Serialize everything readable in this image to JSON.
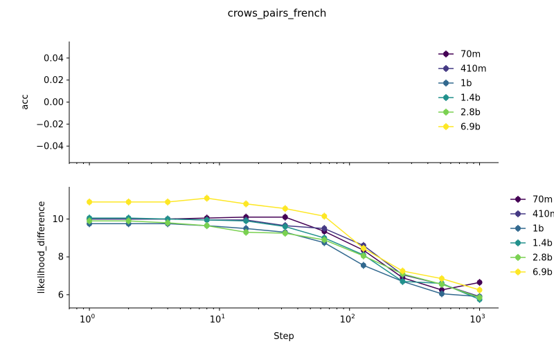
{
  "figure": {
    "title": "crows_pairs_french",
    "xlabel": "Step",
    "series_names": [
      "70m",
      "410m",
      "1b",
      "1.4b",
      "2.8b",
      "6.9b"
    ],
    "colors": [
      "#440154",
      "#443983",
      "#31688e",
      "#21918c",
      "#7ad151",
      "#fde725"
    ]
  },
  "chart_data": [
    {
      "type": "line",
      "ylabel": "acc",
      "x_scale": "log",
      "xlim": [
        0.7,
        1400
      ],
      "ylim": [
        -0.055,
        0.055
      ],
      "yticks": [
        "0.04",
        "0.02",
        "0.00",
        "−0.02",
        "−0.04"
      ],
      "ytick_values": [
        0.04,
        0.02,
        0.0,
        -0.02,
        -0.04
      ],
      "legend": "top-right",
      "series": []
    },
    {
      "type": "line",
      "ylabel": "likelihood_difference",
      "x_scale": "log",
      "xlim": [
        0.7,
        1400
      ],
      "ylim": [
        5.3,
        11.7
      ],
      "yticks": [
        "10",
        "8",
        "6"
      ],
      "ytick_values": [
        10,
        8,
        6
      ],
      "xticks": [
        {
          "base": "10",
          "exp": "0",
          "value": 1
        },
        {
          "base": "10",
          "exp": "1",
          "value": 10
        },
        {
          "base": "10",
          "exp": "2",
          "value": 100
        },
        {
          "base": "10",
          "exp": "3",
          "value": 1000
        }
      ],
      "legend": "right-outside",
      "x": [
        1,
        2,
        4,
        8,
        16,
        32,
        64,
        128,
        256,
        512,
        1000
      ],
      "series": [
        {
          "name": "70m",
          "values": [
            10.0,
            10.0,
            10.0,
            10.05,
            10.1,
            10.1,
            9.35,
            8.35,
            6.9,
            6.25,
            6.65
          ]
        },
        {
          "name": "410m",
          "values": [
            10.0,
            10.0,
            10.0,
            9.95,
            9.95,
            9.65,
            9.5,
            8.6,
            7.05,
            6.55,
            5.9
          ]
        },
        {
          "name": "1b",
          "values": [
            9.75,
            9.75,
            9.75,
            9.65,
            9.5,
            9.3,
            8.75,
            7.55,
            6.7,
            6.05,
            5.9
          ]
        },
        {
          "name": "1.4b",
          "values": [
            10.05,
            10.05,
            10.0,
            9.95,
            9.9,
            9.6,
            9.0,
            8.1,
            6.7,
            6.6,
            5.75
          ]
        },
        {
          "name": "2.8b",
          "values": [
            9.9,
            9.9,
            9.8,
            9.65,
            9.3,
            9.25,
            8.9,
            8.05,
            7.1,
            6.55,
            5.85
          ]
        },
        {
          "name": "6.9b",
          "values": [
            10.9,
            10.9,
            10.9,
            11.1,
            10.8,
            10.55,
            10.15,
            8.45,
            7.25,
            6.85,
            6.25
          ]
        }
      ]
    }
  ]
}
